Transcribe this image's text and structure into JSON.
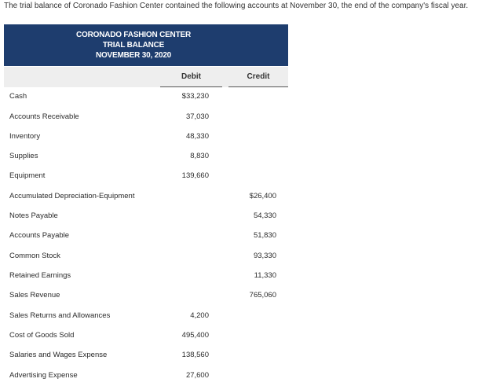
{
  "intro_text": "The trial balance of Coronado Fashion Center contained the following accounts at November 30, the end of the company's fiscal year.",
  "header": {
    "company": "CORONADO FASHION CENTER",
    "statement": "TRIAL BALANCE",
    "date": "NOVEMBER 30, 2020"
  },
  "columns": {
    "debit": "Debit",
    "credit": "Credit"
  },
  "rows": [
    {
      "account": "Cash",
      "debit": "$33,230",
      "credit": ""
    },
    {
      "account": "Accounts Receivable",
      "debit": "37,030",
      "credit": ""
    },
    {
      "account": "Inventory",
      "debit": "48,330",
      "credit": ""
    },
    {
      "account": "Supplies",
      "debit": "8,830",
      "credit": ""
    },
    {
      "account": "Equipment",
      "debit": "139,660",
      "credit": ""
    },
    {
      "account": "Accumulated Depreciation-Equipment",
      "debit": "",
      "credit": "$26,400"
    },
    {
      "account": "Notes Payable",
      "debit": "",
      "credit": "54,330"
    },
    {
      "account": "Accounts Payable",
      "debit": "",
      "credit": "51,830"
    },
    {
      "account": "Common Stock",
      "debit": "",
      "credit": "93,330"
    },
    {
      "account": "Retained Earnings",
      "debit": "",
      "credit": "11,330"
    },
    {
      "account": "Sales Revenue",
      "debit": "",
      "credit": "765,060"
    },
    {
      "account": "Sales Returns and Allowances",
      "debit": "4,200",
      "credit": ""
    },
    {
      "account": "Cost of Goods Sold",
      "debit": "495,400",
      "credit": ""
    },
    {
      "account": "Salaries and Wages Expense",
      "debit": "138,560",
      "credit": ""
    },
    {
      "account": "Advertising Expense",
      "debit": "27,600",
      "credit": ""
    }
  ]
}
